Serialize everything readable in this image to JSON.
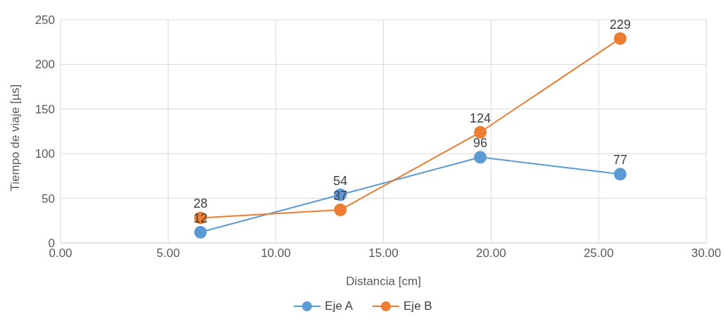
{
  "chart_data": {
    "type": "line",
    "xlabel": "Distancia [cm]",
    "ylabel": "Tiempo de viaje [µs]",
    "x": [
      6.5,
      13,
      19.5,
      26
    ],
    "series": [
      {
        "name": "Eje A",
        "color": "#5b9bd5",
        "values": [
          12,
          54,
          96,
          77
        ]
      },
      {
        "name": "Eje B",
        "color": "#ed7d31",
        "values": [
          28,
          37,
          124,
          229
        ]
      }
    ],
    "xlim": [
      0,
      30
    ],
    "xticks": [
      {
        "value": 0,
        "label": "0.00"
      },
      {
        "value": 5,
        "label": "5.00"
      },
      {
        "value": 10,
        "label": "10.00"
      },
      {
        "value": 15,
        "label": "15.00"
      },
      {
        "value": 20,
        "label": "20.00"
      },
      {
        "value": 25,
        "label": "25.00"
      },
      {
        "value": 30,
        "label": "30.00"
      }
    ],
    "ylim": [
      0,
      250
    ],
    "yticks": [
      0,
      50,
      100,
      150,
      200,
      250
    ],
    "grid": true,
    "legend": "bottom",
    "marker": "circle",
    "line_style": "solid",
    "data_labels": true
  }
}
